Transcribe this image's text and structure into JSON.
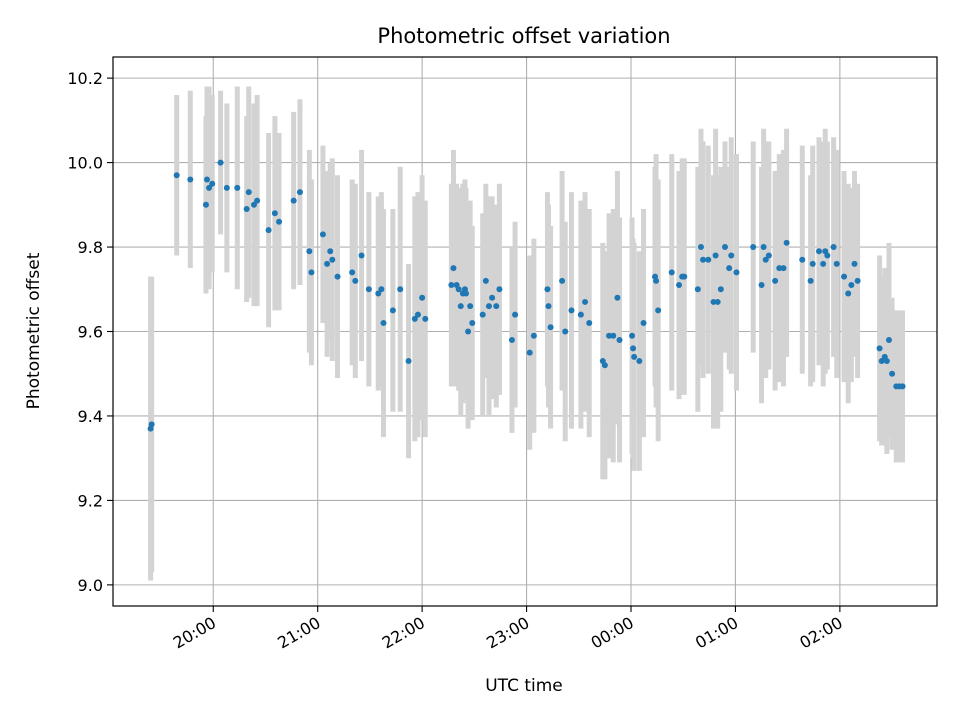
{
  "chart_data": {
    "type": "scatter",
    "title": "Photometric offset variation",
    "xlabel": "UTC time",
    "ylabel": "Photometric offset",
    "x_ticks": [
      {
        "t": 20.0,
        "label": "20:00"
      },
      {
        "t": 21.0,
        "label": "21:00"
      },
      {
        "t": 22.0,
        "label": "22:00"
      },
      {
        "t": 23.0,
        "label": "23:00"
      },
      {
        "t": 24.0,
        "label": "00:00"
      },
      {
        "t": 25.0,
        "label": "01:00"
      },
      {
        "t": 26.0,
        "label": "02:00"
      }
    ],
    "y_ticks": [
      "9.0",
      "9.2",
      "9.4",
      "9.6",
      "9.8",
      "10.0",
      "10.2"
    ],
    "xlim": [
      19.04,
      26.93
    ],
    "ylim": [
      8.95,
      10.25
    ],
    "grid": true,
    "colors": {
      "marker": "#1f77b4",
      "errorbar": "#d3d3d3"
    },
    "series": [
      {
        "points": [
          [
            19.4,
            9.37,
            0.36
          ],
          [
            19.41,
            9.38,
            0.35
          ],
          [
            19.65,
            9.97,
            0.19
          ],
          [
            19.78,
            9.96,
            0.21
          ],
          [
            19.93,
            9.9,
            0.21
          ],
          [
            19.94,
            9.96,
            0.22
          ],
          [
            19.96,
            9.94,
            0.24
          ],
          [
            19.99,
            9.95,
            0.21
          ],
          [
            20.07,
            10.0,
            0.17
          ],
          [
            20.13,
            9.94,
            0.2
          ],
          [
            20.23,
            9.94,
            0.24
          ],
          [
            20.32,
            9.89,
            0.22
          ],
          [
            20.34,
            9.93,
            0.25
          ],
          [
            20.39,
            9.9,
            0.24
          ],
          [
            20.42,
            9.91,
            0.25
          ],
          [
            20.53,
            9.84,
            0.23
          ],
          [
            20.59,
            9.88,
            0.23
          ],
          [
            20.63,
            9.86,
            0.21
          ],
          [
            20.77,
            9.91,
            0.21
          ],
          [
            20.83,
            9.93,
            0.22
          ],
          [
            20.92,
            9.79,
            0.24
          ],
          [
            20.94,
            9.74,
            0.22
          ],
          [
            21.05,
            9.83,
            0.21
          ],
          [
            21.09,
            9.76,
            0.22
          ],
          [
            21.12,
            9.79,
            0.21
          ],
          [
            21.14,
            9.77,
            0.24
          ],
          [
            21.19,
            9.73,
            0.24
          ],
          [
            21.33,
            9.74,
            0.22
          ],
          [
            21.36,
            9.72,
            0.23
          ],
          [
            21.42,
            9.78,
            0.25
          ],
          [
            21.49,
            9.7,
            0.23
          ],
          [
            21.58,
            9.69,
            0.23
          ],
          [
            21.61,
            9.7,
            0.23
          ],
          [
            21.63,
            9.62,
            0.27
          ],
          [
            21.72,
            9.65,
            0.24
          ],
          [
            21.79,
            9.7,
            0.29
          ],
          [
            21.87,
            9.53,
            0.23
          ],
          [
            21.93,
            9.63,
            0.29
          ],
          [
            21.96,
            9.64,
            0.29
          ],
          [
            22.0,
            9.68,
            0.29
          ],
          [
            22.03,
            9.63,
            0.28
          ],
          [
            22.28,
            9.71,
            0.24
          ],
          [
            22.3,
            9.75,
            0.28
          ],
          [
            22.33,
            9.71,
            0.24
          ],
          [
            22.35,
            9.7,
            0.24
          ],
          [
            22.37,
            9.66,
            0.26
          ],
          [
            22.39,
            9.69,
            0.26
          ],
          [
            22.41,
            9.7,
            0.26
          ],
          [
            22.42,
            9.69,
            0.25
          ],
          [
            22.44,
            9.6,
            0.23
          ],
          [
            22.46,
            9.66,
            0.25
          ],
          [
            22.48,
            9.62,
            0.23
          ],
          [
            22.58,
            9.64,
            0.24
          ],
          [
            22.61,
            9.72,
            0.23
          ],
          [
            22.64,
            9.66,
            0.26
          ],
          [
            22.67,
            9.68,
            0.24
          ],
          [
            22.71,
            9.66,
            0.24
          ],
          [
            22.74,
            9.7,
            0.25
          ],
          [
            22.86,
            9.58,
            0.22
          ],
          [
            22.89,
            9.64,
            0.22
          ],
          [
            23.03,
            9.55,
            0.23
          ],
          [
            23.07,
            9.59,
            0.23
          ],
          [
            23.2,
            9.7,
            0.23
          ],
          [
            23.21,
            9.66,
            0.24
          ],
          [
            23.23,
            9.61,
            0.24
          ],
          [
            23.34,
            9.72,
            0.26
          ],
          [
            23.37,
            9.6,
            0.26
          ],
          [
            23.43,
            9.65,
            0.28
          ],
          [
            23.52,
            9.64,
            0.27
          ],
          [
            23.56,
            9.67,
            0.26
          ],
          [
            23.6,
            9.62,
            0.27
          ],
          [
            23.73,
            9.53,
            0.28
          ],
          [
            23.75,
            9.52,
            0.27
          ],
          [
            23.79,
            9.59,
            0.29
          ],
          [
            23.83,
            9.59,
            0.3
          ],
          [
            23.87,
            9.68,
            0.3
          ],
          [
            23.89,
            9.58,
            0.29
          ],
          [
            24.01,
            9.59,
            0.28
          ],
          [
            24.02,
            9.56,
            0.26
          ],
          [
            24.03,
            9.54,
            0.27
          ],
          [
            24.08,
            9.53,
            0.26
          ],
          [
            24.12,
            9.62,
            0.27
          ],
          [
            24.23,
            9.73,
            0.26
          ],
          [
            24.24,
            9.72,
            0.3
          ],
          [
            24.26,
            9.65,
            0.31
          ],
          [
            24.39,
            9.74,
            0.28
          ],
          [
            24.46,
            9.71,
            0.27
          ],
          [
            24.49,
            9.73,
            0.28
          ],
          [
            24.51,
            9.73,
            0.28
          ],
          [
            24.64,
            9.7,
            0.29
          ],
          [
            24.67,
            9.8,
            0.28
          ],
          [
            24.69,
            9.77,
            0.28
          ],
          [
            24.74,
            9.77,
            0.27
          ],
          [
            24.79,
            9.67,
            0.3
          ],
          [
            24.81,
            9.78,
            0.3
          ],
          [
            24.83,
            9.67,
            0.3
          ],
          [
            24.86,
            9.7,
            0.29
          ],
          [
            24.9,
            9.8,
            0.25
          ],
          [
            24.94,
            9.75,
            0.24
          ],
          [
            24.96,
            9.78,
            0.28
          ],
          [
            25.01,
            9.74,
            0.28
          ],
          [
            25.17,
            9.8,
            0.25
          ],
          [
            25.25,
            9.71,
            0.28
          ],
          [
            25.27,
            9.8,
            0.28
          ],
          [
            25.29,
            9.77,
            0.28
          ],
          [
            25.32,
            9.78,
            0.27
          ],
          [
            25.38,
            9.72,
            0.26
          ],
          [
            25.42,
            9.75,
            0.27
          ],
          [
            25.46,
            9.75,
            0.28
          ],
          [
            25.49,
            9.81,
            0.27
          ],
          [
            25.64,
            9.77,
            0.27
          ],
          [
            25.72,
            9.72,
            0.25
          ],
          [
            25.74,
            9.76,
            0.28
          ],
          [
            25.8,
            9.79,
            0.27
          ],
          [
            25.84,
            9.76,
            0.29
          ],
          [
            25.86,
            9.79,
            0.29
          ],
          [
            25.88,
            9.78,
            0.27
          ],
          [
            25.94,
            9.8,
            0.26
          ],
          [
            25.97,
            9.76,
            0.27
          ],
          [
            26.04,
            9.73,
            0.25
          ],
          [
            26.08,
            9.69,
            0.26
          ],
          [
            26.11,
            9.71,
            0.23
          ],
          [
            26.14,
            9.76,
            0.22
          ],
          [
            26.17,
            9.72,
            0.23
          ],
          [
            26.38,
            9.56,
            0.22
          ],
          [
            26.4,
            9.53,
            0.2
          ],
          [
            26.43,
            9.54,
            0.21
          ],
          [
            26.45,
            9.53,
            0.22
          ],
          [
            26.47,
            9.58,
            0.23
          ],
          [
            26.5,
            9.5,
            0.18
          ],
          [
            26.54,
            9.47,
            0.18
          ],
          [
            26.57,
            9.47,
            0.18
          ],
          [
            26.6,
            9.47,
            0.18
          ]
        ]
      }
    ]
  }
}
